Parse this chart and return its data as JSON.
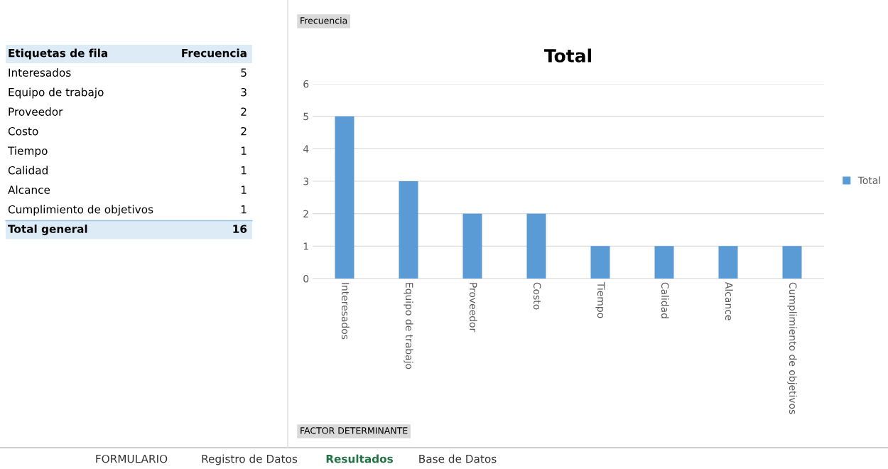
{
  "chart_data": [
    {
      "type": "other",
      "annotations": [
        "Etiquetas de fila",
        "Frecuencia",
        "Interesados",
        "5",
        "Equipo de trabajo",
        "3",
        "Proveedor",
        "2",
        "Costo",
        "2",
        "Tiempo",
        "1",
        "Calidad",
        "1",
        "Alcance",
        "1",
        "Cumplimiento de objetivos",
        "1",
        "Total general",
        "16",
        "FORMULARIO",
        "Registro de Datos",
        "Resultados",
        "Base de Datos"
      ]
    },
    {
      "type": "bar",
      "title": "Total",
      "categories": [
        "Interesados",
        "Equipo de trabajo",
        "Proveedor",
        "Costo",
        "Tiempo",
        "Calidad",
        "Alcance",
        "Cumplimiento de objetivos"
      ],
      "series": [
        {
          "name": "Total",
          "color": "#5b9bd5",
          "values": [
            5,
            3,
            2,
            2,
            1,
            1,
            1,
            1
          ]
        }
      ],
      "ylim": [
        0,
        6
      ],
      "yticks": [
        0,
        1,
        2,
        3,
        4,
        5,
        6
      ],
      "grid": "y",
      "legend": "right",
      "annotations": [
        "Frecuencia",
        "FACTOR DETERMINANTE"
      ]
    }
  ]
}
